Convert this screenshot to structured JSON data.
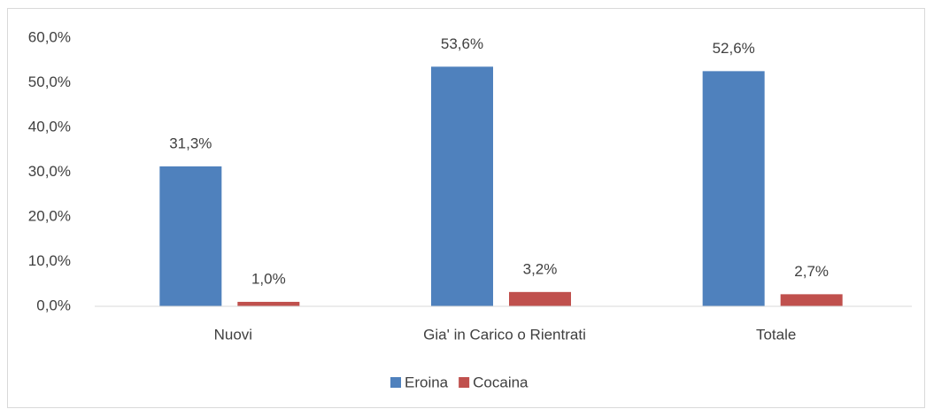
{
  "chart_data": {
    "type": "bar",
    "categories": [
      "Nuovi",
      "Gia' in Carico o Rientrati",
      "Totale"
    ],
    "series": [
      {
        "name": "Eroina",
        "color": "#4f81bd",
        "values": [
          31.3,
          53.6,
          52.6
        ],
        "value_labels": [
          "31,3%",
          "53,6%",
          "52,6%"
        ]
      },
      {
        "name": "Cocaina",
        "color": "#c0504d",
        "values": [
          1.0,
          3.2,
          2.7
        ],
        "value_labels": [
          "1,0%",
          "3,2%",
          "2,7%"
        ]
      }
    ],
    "ylim": [
      0,
      60
    ],
    "yticks": [
      {
        "value": 0,
        "label": "0,0%"
      },
      {
        "value": 10,
        "label": "10,0%"
      },
      {
        "value": 20,
        "label": "20,0%"
      },
      {
        "value": 30,
        "label": "30,0%"
      },
      {
        "value": 40,
        "label": "40,0%"
      },
      {
        "value": 50,
        "label": "50,0%"
      },
      {
        "value": 60,
        "label": "60,0%"
      }
    ],
    "grid": false,
    "legend": "bottom"
  }
}
